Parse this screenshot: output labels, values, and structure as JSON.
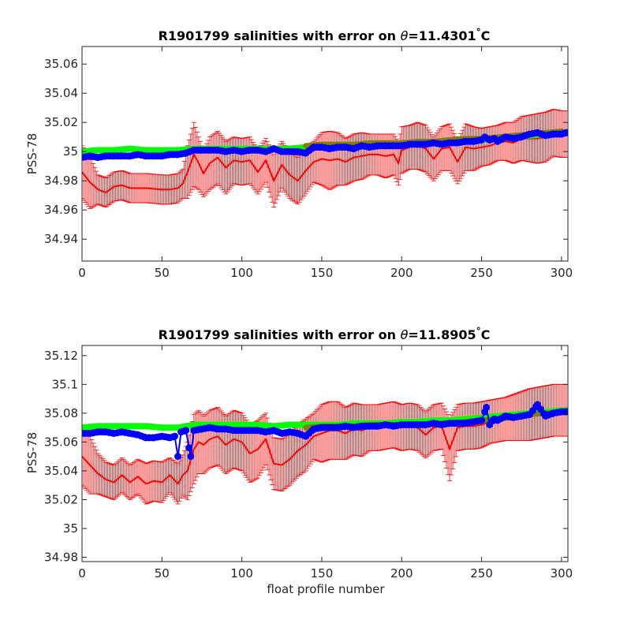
{
  "colors": {
    "mean": "#ff0000",
    "errorbar": "#ff0000",
    "green": "#00ff00",
    "olive": "#7f7f00",
    "blue": "#0000ff",
    "axis": "#262626"
  },
  "chart_data": [
    {
      "type": "line",
      "title": "R1901799 salinities with error on θ=11.4301°C",
      "title_parts": {
        "prefix": "R1901799 salinities with error on ",
        "theta": "θ",
        "value": "=11.4301",
        "degree": "°",
        "unit": "C"
      },
      "xlabel": "",
      "ylabel": "PSS-78",
      "xlim": [
        0,
        304
      ],
      "ylim": [
        34.925,
        35.072
      ],
      "xticks": [
        0,
        50,
        100,
        150,
        200,
        250,
        300
      ],
      "xtick_labels": [
        "0",
        "50",
        "100",
        "150",
        "200",
        "250",
        "300"
      ],
      "yticks": [
        34.94,
        34.96,
        34.98,
        35.0,
        35.02,
        35.04,
        35.06
      ],
      "ytick_labels": [
        "34.94",
        "34.96",
        "34.98",
        "35",
        "35.02",
        "35.04",
        "35.06"
      ],
      "grid": false,
      "series": [
        {
          "role": "mean_with_error",
          "x": [
            0,
            5,
            10,
            15,
            20,
            25,
            30,
            40,
            50,
            55,
            60,
            63,
            66,
            70,
            73,
            76,
            80,
            85,
            90,
            95,
            100,
            105,
            110,
            115,
            120,
            125,
            130,
            135,
            140,
            145,
            150,
            155,
            160,
            165,
            170,
            175,
            180,
            185,
            190,
            195,
            198,
            200,
            205,
            210,
            215,
            220,
            225,
            230,
            235,
            240,
            245,
            250,
            255,
            260,
            265,
            270,
            275,
            280,
            285,
            290,
            295,
            300,
            303
          ],
          "y": [
            34.986,
            34.979,
            34.974,
            34.972,
            34.976,
            34.977,
            34.975,
            34.975,
            34.974,
            34.974,
            34.975,
            34.978,
            34.986,
            34.998,
            34.992,
            34.985,
            34.992,
            34.996,
            34.989,
            34.994,
            34.993,
            34.994,
            34.986,
            34.994,
            34.98,
            34.991,
            34.984,
            34.98,
            34.987,
            34.993,
            34.995,
            34.994,
            34.995,
            34.993,
            34.996,
            34.997,
            34.998,
            34.998,
            34.997,
            34.998,
            34.992,
            35.001,
            35.003,
            35.004,
            35.002,
            34.995,
            35.002,
            35.003,
            34.993,
            35.003,
            35.002,
            35.003,
            35.004,
            35.006,
            35.007,
            35.006,
            35.009,
            35.009,
            35.009,
            35.01,
            35.013,
            35.012,
            35.012
          ],
          "err": [
            0.018,
            0.018,
            0.01,
            0.01,
            0.01,
            0.01,
            0.01,
            0.01,
            0.01,
            0.01,
            0.01,
            0.01,
            0.018,
            0.022,
            0.018,
            0.016,
            0.018,
            0.018,
            0.018,
            0.016,
            0.016,
            0.016,
            0.015,
            0.015,
            0.018,
            0.016,
            0.016,
            0.016,
            0.016,
            0.014,
            0.018,
            0.02,
            0.018,
            0.016,
            0.016,
            0.016,
            0.014,
            0.014,
            0.015,
            0.014,
            0.015,
            0.016,
            0.015,
            0.016,
            0.016,
            0.015,
            0.015,
            0.016,
            0.015,
            0.016,
            0.015,
            0.013,
            0.013,
            0.012,
            0.013,
            0.014,
            0.015,
            0.016,
            0.017,
            0.017,
            0.016,
            0.016,
            0.016
          ]
        },
        {
          "role": "green",
          "x": [
            0,
            10,
            20,
            30,
            40,
            50,
            60,
            70,
            80,
            90,
            100,
            110,
            120,
            130,
            140,
            150,
            160,
            170,
            180,
            190,
            200,
            210,
            220,
            230,
            240,
            250,
            260,
            270,
            280,
            290,
            300,
            303
          ],
          "y": [
            35.0,
            35.001,
            35.001,
            35.002,
            35.001,
            35.001,
            35.001,
            35.002,
            35.002,
            35.002,
            35.002,
            35.002,
            35.002,
            35.002,
            35.003,
            35.003,
            35.003,
            35.004,
            35.004,
            35.004,
            35.005,
            35.006,
            35.006,
            35.007,
            35.007,
            35.008,
            35.009,
            35.01,
            35.011,
            35.012,
            35.013,
            35.013
          ]
        },
        {
          "role": "olive",
          "x": [
            140,
            150,
            160,
            170,
            180,
            190,
            200,
            210,
            220,
            230,
            240,
            250,
            260,
            270,
            280,
            290,
            300
          ],
          "y": [
            35.004,
            35.005,
            35.005,
            35.005,
            35.006,
            35.006,
            35.006,
            35.007,
            35.007,
            35.008,
            35.009,
            35.009,
            35.01,
            35.011,
            35.012,
            35.013,
            35.014
          ]
        },
        {
          "role": "blue",
          "x": [
            0,
            5,
            10,
            15,
            20,
            25,
            30,
            35,
            40,
            45,
            50,
            55,
            60,
            65,
            70,
            75,
            80,
            85,
            90,
            95,
            100,
            105,
            110,
            115,
            120,
            125,
            130,
            135,
            140,
            145,
            150,
            155,
            160,
            165,
            170,
            175,
            180,
            185,
            190,
            195,
            200,
            205,
            210,
            215,
            220,
            225,
            230,
            235,
            240,
            245,
            250,
            252,
            255,
            258,
            260,
            265,
            270,
            275,
            280,
            285,
            290,
            295,
            300,
            303
          ],
          "y": [
            34.996,
            34.997,
            34.996,
            34.997,
            34.997,
            34.997,
            34.997,
            34.998,
            34.997,
            34.997,
            34.997,
            34.998,
            34.998,
            34.999,
            35.001,
            35.001,
            35.001,
            35.001,
            35.0,
            35.001,
            35.0,
            35.001,
            35.001,
            35.0,
            35.002,
            35.0,
            35.0,
            35.0,
            34.999,
            35.003,
            35.003,
            35.002,
            35.003,
            35.003,
            35.002,
            35.004,
            35.003,
            35.004,
            35.004,
            35.004,
            35.004,
            35.005,
            35.005,
            35.005,
            35.006,
            35.005,
            35.006,
            35.006,
            35.007,
            35.007,
            35.008,
            35.01,
            35.008,
            35.009,
            35.007,
            35.01,
            35.009,
            35.01,
            35.012,
            35.013,
            35.011,
            35.012,
            35.012,
            35.013
          ]
        }
      ]
    },
    {
      "type": "line",
      "title": "R1901799 salinities with error on θ=11.8905°C",
      "title_parts": {
        "prefix": "R1901799 salinities with error on ",
        "theta": "θ",
        "value": "=11.8905",
        "degree": "°",
        "unit": "C"
      },
      "xlabel": "float profile number",
      "ylabel": "PSS-78",
      "xlim": [
        0,
        304
      ],
      "ylim": [
        34.977,
        35.127
      ],
      "xticks": [
        0,
        50,
        100,
        150,
        200,
        250,
        300
      ],
      "xtick_labels": [
        "0",
        "50",
        "100",
        "150",
        "200",
        "250",
        "300"
      ],
      "yticks": [
        34.98,
        35.0,
        35.02,
        35.04,
        35.06,
        35.08,
        35.1,
        35.12
      ],
      "ytick_labels": [
        "34.98",
        "35",
        "35.02",
        "35.04",
        "35.06",
        "35.08",
        "35.1",
        "35.12"
      ],
      "grid": false,
      "series": [
        {
          "role": "mean_with_error",
          "x": [
            0,
            5,
            10,
            15,
            20,
            25,
            30,
            35,
            40,
            45,
            50,
            55,
            60,
            63,
            66,
            70,
            73,
            76,
            80,
            85,
            90,
            95,
            100,
            105,
            110,
            115,
            120,
            125,
            130,
            135,
            140,
            145,
            150,
            155,
            160,
            165,
            170,
            175,
            180,
            185,
            190,
            195,
            200,
            205,
            210,
            215,
            220,
            225,
            230,
            235,
            240,
            245,
            250,
            255,
            260,
            265,
            270,
            275,
            280,
            285,
            290,
            295,
            300,
            303
          ],
          "y": [
            35.05,
            35.044,
            35.038,
            35.034,
            35.032,
            35.037,
            35.032,
            35.036,
            35.031,
            35.033,
            35.032,
            35.037,
            35.031,
            35.037,
            35.04,
            35.055,
            35.06,
            35.058,
            35.062,
            35.064,
            35.058,
            35.062,
            35.06,
            35.052,
            35.055,
            35.062,
            35.045,
            35.044,
            35.048,
            35.054,
            35.058,
            35.064,
            35.066,
            35.068,
            35.068,
            35.066,
            35.069,
            35.068,
            35.07,
            35.07,
            35.071,
            35.072,
            35.07,
            35.071,
            35.07,
            35.065,
            35.07,
            35.071,
            35.055,
            35.07,
            35.071,
            35.071,
            35.072,
            35.074,
            35.075,
            35.076,
            35.077,
            35.078,
            35.079,
            35.08,
            35.081,
            35.082,
            35.082,
            35.082
          ],
          "err": [
            0.02,
            0.02,
            0.014,
            0.012,
            0.012,
            0.012,
            0.012,
            0.012,
            0.014,
            0.014,
            0.014,
            0.012,
            0.014,
            0.014,
            0.02,
            0.024,
            0.022,
            0.02,
            0.02,
            0.02,
            0.02,
            0.02,
            0.02,
            0.02,
            0.02,
            0.018,
            0.018,
            0.018,
            0.018,
            0.018,
            0.018,
            0.016,
            0.02,
            0.02,
            0.02,
            0.018,
            0.018,
            0.018,
            0.016,
            0.016,
            0.016,
            0.016,
            0.016,
            0.016,
            0.016,
            0.016,
            0.016,
            0.016,
            0.022,
            0.016,
            0.016,
            0.016,
            0.016,
            0.015,
            0.015,
            0.015,
            0.016,
            0.017,
            0.018,
            0.018,
            0.018,
            0.018,
            0.018,
            0.018
          ]
        },
        {
          "role": "green",
          "x": [
            0,
            10,
            20,
            30,
            40,
            50,
            60,
            70,
            80,
            90,
            100,
            110,
            120,
            130,
            140,
            150,
            160,
            170,
            180,
            190,
            200,
            210,
            220,
            230,
            240,
            250,
            260,
            270,
            280,
            290,
            300,
            303
          ],
          "y": [
            35.07,
            35.071,
            35.071,
            35.071,
            35.071,
            35.07,
            35.07,
            35.072,
            35.072,
            35.072,
            35.072,
            35.072,
            35.071,
            35.072,
            35.072,
            35.072,
            35.072,
            35.073,
            35.073,
            35.073,
            35.074,
            35.074,
            35.075,
            35.075,
            35.076,
            35.077,
            35.078,
            35.079,
            35.08,
            35.081,
            35.082,
            35.082
          ]
        },
        {
          "role": "olive",
          "x": [
            140,
            150,
            160,
            170,
            180,
            190,
            200,
            210,
            220,
            230,
            240,
            250,
            260,
            270,
            280,
            290,
            300
          ],
          "y": [
            35.07,
            35.071,
            35.071,
            35.071,
            35.072,
            35.072,
            35.072,
            35.072,
            35.073,
            35.073,
            35.074,
            35.075,
            35.076,
            35.077,
            35.079,
            35.08,
            35.081
          ]
        },
        {
          "role": "blue",
          "x": [
            0,
            5,
            10,
            15,
            20,
            25,
            30,
            35,
            40,
            45,
            50,
            55,
            58,
            60,
            62,
            65,
            68,
            70,
            75,
            80,
            85,
            90,
            95,
            100,
            105,
            110,
            115,
            120,
            125,
            130,
            135,
            140,
            145,
            150,
            155,
            160,
            165,
            170,
            175,
            180,
            185,
            190,
            195,
            200,
            205,
            210,
            215,
            220,
            225,
            230,
            235,
            240,
            245,
            250,
            253,
            255,
            258,
            260,
            265,
            270,
            275,
            280,
            285,
            290,
            295,
            300,
            303
          ],
          "y": [
            35.066,
            35.066,
            35.067,
            35.067,
            35.066,
            35.067,
            35.066,
            35.065,
            35.063,
            35.063,
            35.064,
            35.063,
            35.064,
            35.05,
            35.067,
            35.068,
            35.05,
            35.068,
            35.069,
            35.07,
            35.069,
            35.069,
            35.068,
            35.068,
            35.068,
            35.068,
            35.067,
            35.068,
            35.066,
            35.067,
            35.066,
            35.064,
            35.069,
            35.07,
            35.07,
            35.07,
            35.071,
            35.07,
            35.071,
            35.071,
            35.071,
            35.072,
            35.071,
            35.072,
            35.072,
            35.072,
            35.072,
            35.073,
            35.072,
            35.073,
            35.073,
            35.073,
            35.074,
            35.075,
            35.084,
            35.072,
            35.076,
            35.075,
            35.078,
            35.077,
            35.078,
            35.079,
            35.086,
            35.078,
            35.08,
            35.081,
            35.081
          ]
        }
      ]
    }
  ]
}
